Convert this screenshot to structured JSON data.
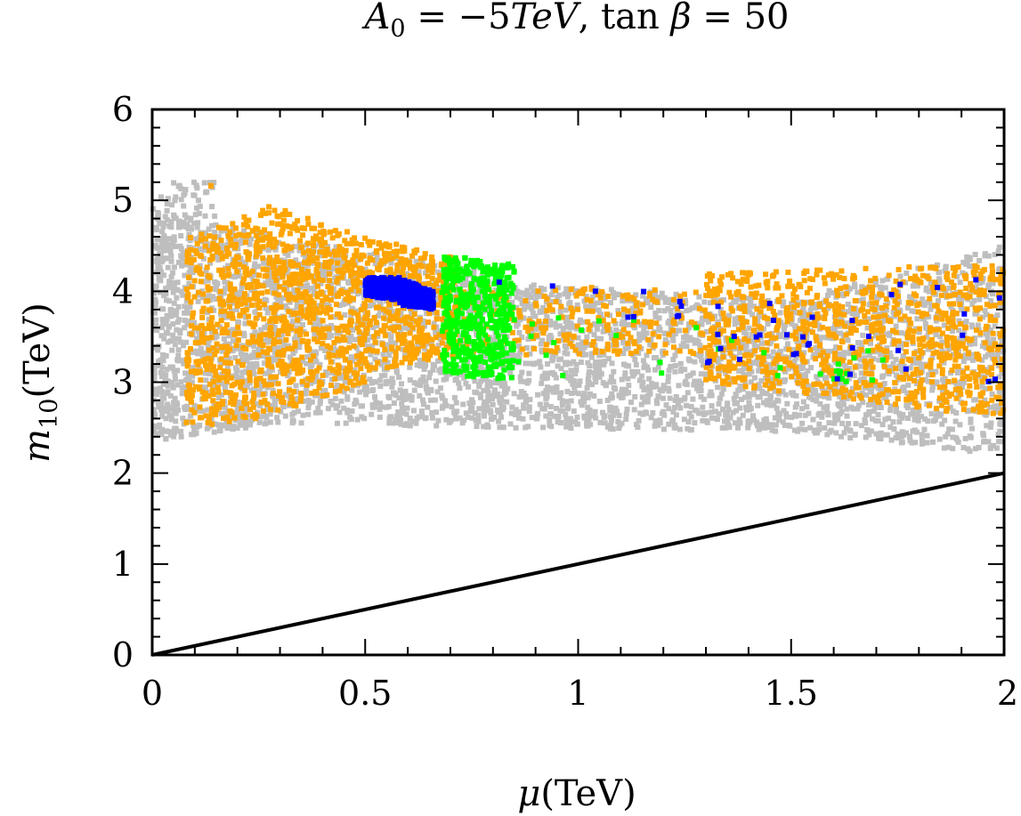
{
  "chart_data": {
    "type": "scatter",
    "title_parts": {
      "a": "A",
      "a_sub": "0",
      "eq1": " = −5",
      "tev": "TeV",
      "comma": ", tan ",
      "beta": "β",
      "eq2": " = 50"
    },
    "xlabel_parts": {
      "sym": "μ",
      "unit": "(TeV)"
    },
    "ylabel_parts": {
      "sym": "m",
      "sub": "10",
      "unit": "(TeV)"
    },
    "xlim": [
      0,
      2
    ],
    "ylim": [
      0,
      6
    ],
    "xticks": [
      {
        "value": 0,
        "label": "0"
      },
      {
        "value": 0.5,
        "label": "0.5"
      },
      {
        "value": 1,
        "label": "1"
      },
      {
        "value": 1.5,
        "label": "1.5"
      },
      {
        "value": 2,
        "label": "2"
      }
    ],
    "yticks": [
      {
        "value": 0,
        "label": "0"
      },
      {
        "value": 1,
        "label": "1"
      },
      {
        "value": 2,
        "label": "2"
      },
      {
        "value": 3,
        "label": "3"
      },
      {
        "value": 4,
        "label": "4"
      },
      {
        "value": 5,
        "label": "5"
      },
      {
        "value": 6,
        "label": "6"
      }
    ],
    "reference_line": {
      "name": "m10 = mu",
      "x": [
        0,
        2
      ],
      "y": [
        0,
        2
      ],
      "color": "#000000"
    },
    "series": [
      {
        "name": "gray",
        "color": "#bebebe",
        "regions": [
          {
            "xr": [
              0.0,
              0.3
            ],
            "ymin": [
              2.35,
              2.55
            ],
            "ymax": [
              4.9,
              4.6
            ],
            "n": 900
          },
          {
            "xr": [
              0.3,
              0.8
            ],
            "ymin": [
              2.55,
              2.5
            ],
            "ymax": [
              4.6,
              4.2
            ],
            "n": 1100
          },
          {
            "xr": [
              0.8,
              1.5
            ],
            "ymin": [
              2.5,
              2.45
            ],
            "ymax": [
              4.1,
              3.9
            ],
            "n": 1300
          },
          {
            "xr": [
              1.5,
              2.0
            ],
            "ymin": [
              2.45,
              2.2
            ],
            "ymax": [
              3.9,
              4.5
            ],
            "n": 1000
          },
          {
            "xr": [
              0.0,
              0.05
            ],
            "ymin": [
              2.4,
              2.4
            ],
            "ymax": [
              5.1,
              5.1
            ],
            "n": 80
          },
          {
            "xr": [
              0.05,
              0.15
            ],
            "ymin": [
              4.7,
              4.7
            ],
            "ymax": [
              5.2,
              5.2
            ],
            "n": 40
          }
        ]
      },
      {
        "name": "orange",
        "color": "#ffa500",
        "regions": [
          {
            "xr": [
              0.08,
              0.25
            ],
            "ymin": [
              2.5,
              2.6
            ],
            "ymax": [
              4.6,
              4.9
            ],
            "n": 380
          },
          {
            "xr": [
              0.25,
              0.5
            ],
            "ymin": [
              2.6,
              3.0
            ],
            "ymax": [
              5.0,
              4.6
            ],
            "n": 600
          },
          {
            "xr": [
              0.5,
              0.72
            ],
            "ymin": [
              3.1,
              3.3
            ],
            "ymax": [
              4.6,
              4.4
            ],
            "n": 380
          },
          {
            "xr": [
              0.72,
              1.3
            ],
            "ymin": [
              3.3,
              3.3
            ],
            "ymax": [
              4.1,
              4.0
            ],
            "n": 220
          },
          {
            "xr": [
              1.3,
              2.0
            ],
            "ymin": [
              3.0,
              2.6
            ],
            "ymax": [
              4.2,
              4.3
            ],
            "n": 900
          },
          {
            "xr": [
              0.13,
              0.15
            ],
            "ymin": [
              5.1,
              5.25
            ],
            "ymax": [
              5.1,
              5.25
            ],
            "n": 2
          }
        ]
      },
      {
        "name": "green",
        "color": "#00ff00",
        "regions": [
          {
            "xr": [
              0.68,
              0.85
            ],
            "ymin": [
              3.1,
              3.0
            ],
            "ymax": [
              4.4,
              4.3
            ],
            "n": 500
          },
          {
            "xr": [
              0.85,
              1.75
            ],
            "ymin": [
              3.0,
              3.0
            ],
            "ymax": [
              3.9,
              3.3
            ],
            "n": 25
          },
          {
            "xr": [
              1.6,
              1.63
            ],
            "ymin": [
              3.0,
              3.0
            ],
            "ymax": [
              3.2,
              3.2
            ],
            "n": 8
          }
        ]
      },
      {
        "name": "blue",
        "color": "#0000ff",
        "regions": [
          {
            "xr": [
              0.5,
              0.58
            ],
            "ymin": [
              3.95,
              3.9
            ],
            "ymax": [
              4.15,
              4.15
            ],
            "n": 300
          },
          {
            "xr": [
              0.58,
              0.66
            ],
            "ymin": [
              3.85,
              3.8
            ],
            "ymax": [
              4.15,
              4.0
            ],
            "n": 250
          },
          {
            "xr": [
              0.8,
              1.25
            ],
            "ymin": [
              3.7,
              3.7
            ],
            "ymax": [
              4.35,
              3.95
            ],
            "n": 10
          },
          {
            "xr": [
              1.3,
              1.55
            ],
            "ymin": [
              3.1,
              3.3
            ],
            "ymax": [
              3.9,
              3.9
            ],
            "n": 18
          },
          {
            "xr": [
              1.55,
              2.0
            ],
            "ymin": [
              2.9,
              3.0
            ],
            "ymax": [
              4.1,
              4.25
            ],
            "n": 16
          }
        ]
      }
    ]
  }
}
